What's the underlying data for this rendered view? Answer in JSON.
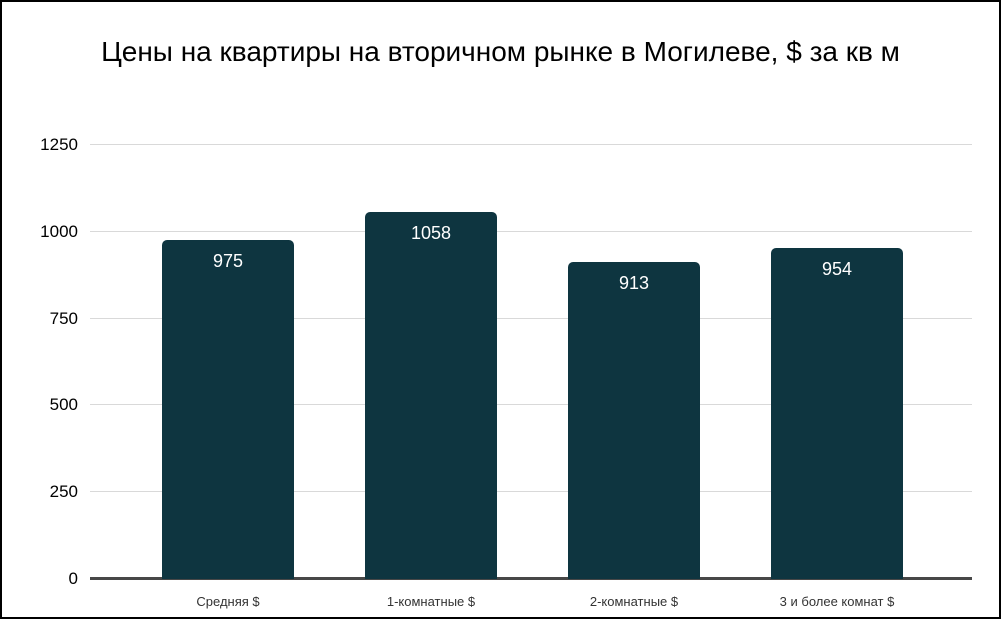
{
  "chart_data": {
    "type": "bar",
    "title": "Цены на квартиры на вторичном рынке в Могилеве, $ за кв м",
    "categories": [
      "Средняя $",
      "1-комнатные $",
      "2-комнатные $",
      "3 и более комнат $"
    ],
    "values": [
      975,
      1058,
      913,
      954
    ],
    "value_labels": [
      "975",
      "1058",
      "913",
      "954"
    ],
    "xlabel": "",
    "ylabel": "",
    "ylim": [
      0,
      1250
    ],
    "yticks": [
      0,
      250,
      500,
      750,
      1000,
      1250
    ],
    "grid": "horizontal",
    "legend": "none",
    "value_labels_position": "inside-top",
    "colors": {
      "bar": "#0e3540",
      "value_label": "#ffffff",
      "gridline": "#d9d9d9",
      "axis_line": "#474747",
      "title_text": "#000000",
      "tick_label": "#000000",
      "category_label": "#333333",
      "background": "#ffffff",
      "border": "#000000"
    }
  }
}
